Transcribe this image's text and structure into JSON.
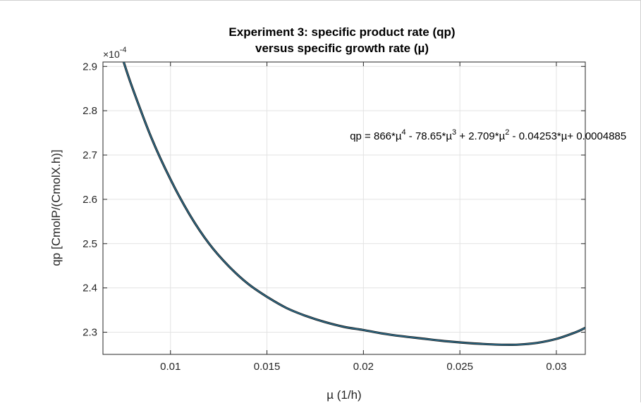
{
  "chart_data": {
    "type": "line",
    "title": [
      "Experiment 3: specific product rate (qp)",
      "versus specific growth rate (µ)"
    ],
    "xlabel": "µ (1/h)",
    "ylabel": "qp [CmolP/(CmolX.h)]",
    "y_exponent": "×10",
    "y_exponent_power": "-4",
    "xlim": [
      0.0065,
      0.0315
    ],
    "ylim": [
      2.25,
      2.91
    ],
    "x_ticks": [
      0.01,
      0.015,
      0.02,
      0.025,
      0.03
    ],
    "x_tick_labels": [
      "0.01",
      "0.015",
      "0.02",
      "0.025",
      "0.03"
    ],
    "y_ticks": [
      2.3,
      2.4,
      2.5,
      2.6,
      2.7,
      2.8,
      2.9
    ],
    "y_tick_labels": [
      "2.3",
      "2.4",
      "2.5",
      "2.6",
      "2.7",
      "2.8",
      "2.9"
    ],
    "grid": true,
    "line_color": "#2e6f8e",
    "series": [
      {
        "x": [
          0.0075,
          0.008,
          0.009,
          0.01,
          0.011,
          0.012,
          0.013,
          0.014,
          0.015,
          0.016,
          0.017,
          0.018,
          0.019,
          0.02,
          0.021,
          0.022,
          0.023,
          0.024,
          0.025,
          0.026,
          0.027,
          0.028,
          0.029,
          0.03,
          0.031,
          0.0315
        ],
        "y": [
          2.92,
          2.855,
          2.74,
          2.645,
          2.565,
          2.5,
          2.45,
          2.41,
          2.38,
          2.355,
          2.337,
          2.323,
          2.312,
          2.305,
          2.297,
          2.291,
          2.286,
          2.281,
          2.277,
          2.274,
          2.272,
          2.272,
          2.276,
          2.285,
          2.3,
          2.31
        ]
      }
    ],
    "annotation": {
      "parts": [
        {
          "text": "qp = 866*µ",
          "sup": false
        },
        {
          "text": "4",
          "sup": true
        },
        {
          "text": " - 78.65*µ",
          "sup": false
        },
        {
          "text": "3",
          "sup": true
        },
        {
          "text": " + 2.709*µ",
          "sup": false
        },
        {
          "text": "2",
          "sup": true
        },
        {
          "text": " - 0.04253*µ+ 0.0004885",
          "sup": false
        }
      ],
      "x": 0.0193,
      "y": 2.735
    }
  }
}
